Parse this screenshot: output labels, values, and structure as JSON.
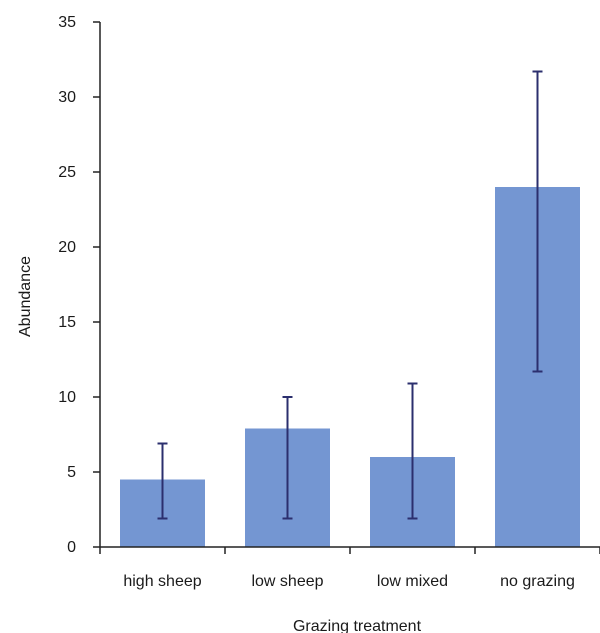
{
  "chart_data": {
    "type": "bar",
    "categories": [
      "high sheep",
      "low sheep",
      "low mixed",
      "no grazing"
    ],
    "values": [
      4.5,
      7.9,
      6.0,
      24.0
    ],
    "error_upper": [
      6.9,
      10.0,
      10.9,
      31.7
    ],
    "error_lower": [
      1.9,
      1.9,
      1.9,
      11.7
    ],
    "xlabel": "Grazing treatment",
    "ylabel": "Abundance",
    "ylim": [
      0,
      35
    ],
    "yticks": [
      0,
      5,
      10,
      15,
      20,
      25,
      30,
      35
    ],
    "grid": false,
    "legend": "none",
    "bar_color": "#7496d2",
    "error_bar_color": "#2b2f6e"
  }
}
